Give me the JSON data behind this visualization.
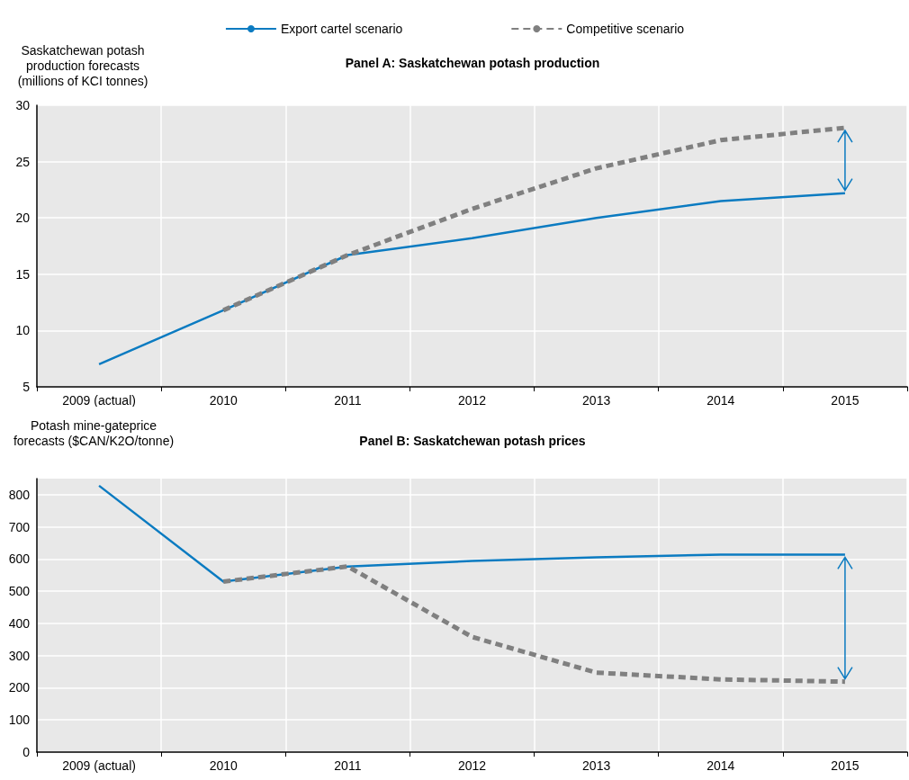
{
  "chart_data": [
    {
      "type": "line",
      "title": "Panel A: Saskatchewan potash production",
      "ylabel": "Saskatchewan potash production forecasts (millions of KCI tonnes)",
      "categories": [
        "2009 (actual)",
        "2010",
        "2011",
        "2012",
        "2013",
        "2014",
        "2015"
      ],
      "series": [
        {
          "name": "Export cartel scenario",
          "color": "#0b7bc1",
          "line_style": "solid",
          "values": [
            7.0,
            11.8,
            16.7,
            18.2,
            20.0,
            21.5,
            22.2
          ]
        },
        {
          "name": "Competitive scenario",
          "color": "#808080",
          "line_style": "dashed",
          "values": [
            null,
            11.8,
            16.7,
            20.8,
            24.4,
            26.9,
            28.0
          ]
        }
      ],
      "ylim": [
        5,
        30
      ],
      "yticks": [
        5,
        10,
        15,
        20,
        25,
        30
      ],
      "grid": true,
      "legend": "top",
      "marker": "none"
    },
    {
      "type": "line",
      "title": "Panel B: Saskatchewan potash prices",
      "ylabel": "Potash mine-gateprice forecasts ($CAN/K2O/tonne)",
      "categories": [
        "2009 (actual)",
        "2010",
        "2011",
        "2012",
        "2013",
        "2014",
        "2015"
      ],
      "series": [
        {
          "color": "#0b7bc1",
          "line_style": "solid",
          "values": [
            828,
            530,
            577,
            594,
            605,
            614,
            614
          ]
        },
        {
          "color": "#808080",
          "line_style": "dashed",
          "values": [
            null,
            530,
            577,
            358,
            247,
            226,
            219
          ]
        }
      ],
      "ylim": [
        0,
        850
      ],
      "yticks": [
        0,
        100,
        200,
        300,
        400,
        500,
        600,
        700,
        800
      ],
      "grid": true,
      "legend": false,
      "marker": "none"
    }
  ]
}
